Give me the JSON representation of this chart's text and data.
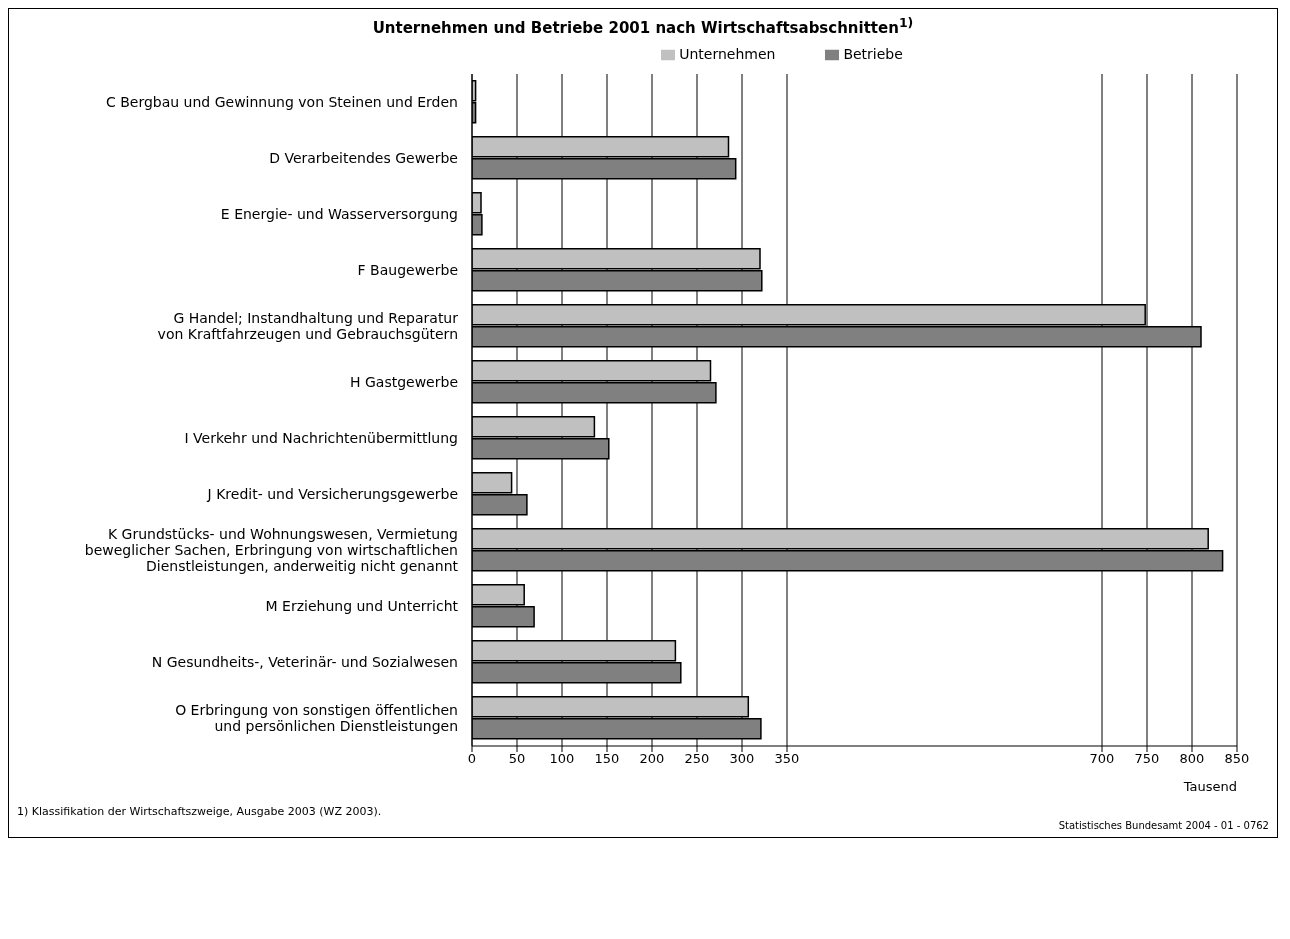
{
  "chart_data": {
    "type": "bar",
    "orientation": "horizontal",
    "title": "Unternehmen und Betriebe 2001 nach Wirtschaftsabschnitten$^{1)}$",
    "xlabel": "Tausend",
    "categories": [
      "C Bergbau und Gewinnung von Steinen und Erden",
      "D Verarbeitendes Gewerbe",
      "E Energie- und Wasserversorgung",
      "F Baugewerbe",
      "G Handel; Instandhaltung und Reparatur\nvon Kraftfahrzeugen und Gebrauchsgütern",
      "H Gastgewerbe",
      "I Verkehr und Nachrichtenübermittlung",
      "J Kredit- und Versicherungsgewerbe",
      "K Grundstücks- und Wohnungswesen, Vermietung\nbeweglicher Sachen, Erbringung von wirtschaftlichen\nDienstleistungen, anderweitig nicht genannt",
      "M Erziehung und Unterricht",
      "N Gesundheits-, Veterinär- und Sozialwesen",
      "O Erbringung von sonstigen öffentlichen\nund persönlichen Dienstleistungen"
    ],
    "series": [
      {
        "name": "Unternehmen",
        "color": "#c0c0c0",
        "values": [
          4,
          285,
          10,
          320,
          748,
          265,
          136,
          44,
          818,
          58,
          226,
          307
        ]
      },
      {
        "name": "Betriebe",
        "color": "#808080",
        "values": [
          4,
          293,
          11,
          322,
          810,
          271,
          152,
          61,
          834,
          69,
          232,
          321
        ]
      }
    ],
    "xlim": [
      0,
      850
    ],
    "xticks": [
      0,
      50,
      100,
      150,
      200,
      250,
      300,
      350,
      700,
      750,
      800,
      850
    ],
    "grid": "x",
    "legend": "top",
    "annotations": [
      "1) Klassifikation der Wirtschaftszweige, Ausgabe 2003 (WZ 2003).",
      "Statistisches Bundesamt 2004 - 01 - 0762"
    ]
  }
}
